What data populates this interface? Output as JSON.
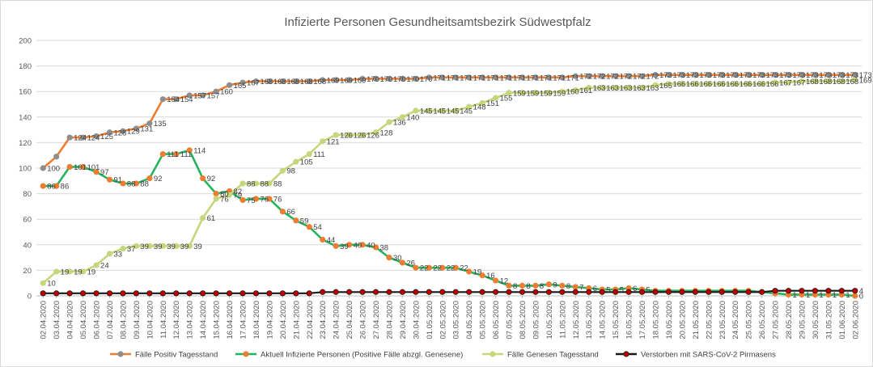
{
  "chart_data": {
    "type": "line",
    "title": "Infizierte Personen Gesundheitsamtsbezirk Südwestpfalz",
    "ylim": [
      0,
      200
    ],
    "yticks": [
      "0",
      "20",
      "40",
      "60",
      "80",
      "100",
      "120",
      "140",
      "160",
      "180",
      "200"
    ],
    "categories": [
      "02.04.2020",
      "03.04.2020",
      "04.04.2020",
      "05.04.2020",
      "06.04.2020",
      "07.04.2020",
      "08.04.2020",
      "09.04.2020",
      "10.04.2020",
      "11.04.2020",
      "12.04.2020",
      "13.04.2020",
      "14.04.2020",
      "15.04.2020",
      "16.04.2020",
      "17.04.2020",
      "18.04.2020",
      "19.04.2020",
      "20.04.2020",
      "21.04.2020",
      "22.04.2020",
      "23.04.2020",
      "24.04.2020",
      "25.04.2020",
      "26.04.2020",
      "27.04.2020",
      "28.04.2020",
      "29.04.2020",
      "30.04.2020",
      "01.05.2020",
      "02.05.2020",
      "03.05.2020",
      "04.05.2020",
      "05.05.2020",
      "06.05.2020",
      "07.05.2020",
      "08.05.2020",
      "09.05.2020",
      "10.05.2020",
      "11.05.2020",
      "12.05.2020",
      "13.05.2020",
      "14.05.2020",
      "15.05.2020",
      "16.05.2020",
      "17.05.2020",
      "18.05.2020",
      "19.05.2020",
      "20.05.2020",
      "21.05.2020",
      "22.05.2020",
      "23.05.2020",
      "24.05.2020",
      "25.05.2020",
      "26.05.2020",
      "27.05.2020",
      "28.05.2020",
      "29.05.2020",
      "30.05.2020",
      "31.05.2020",
      "01.06.2020",
      "02.06.2020"
    ],
    "series": [
      {
        "name": "Fälle Positiv Tagesstand",
        "line_color": "#ed7d31",
        "marker_color": "#8e8e8e",
        "values": [
          100,
          109,
          124,
          124,
          125,
          128,
          129,
          131,
          135,
          154,
          154,
          157,
          157,
          160,
          165,
          167,
          168,
          168,
          168,
          168,
          168,
          169,
          169,
          169,
          170,
          170,
          170,
          170,
          170,
          171,
          171,
          171,
          171,
          171,
          171,
          171,
          171,
          171,
          171,
          171,
          172,
          172,
          172,
          172,
          172,
          172,
          173,
          173,
          173,
          173,
          173,
          173,
          173,
          173,
          173,
          173,
          173,
          173,
          173,
          173,
          173,
          173
        ],
        "labels": [
          "100",
          "",
          "124",
          "124",
          "125",
          "128",
          "129",
          "131",
          "135",
          "154",
          "154",
          "157",
          "157",
          "160",
          "165",
          "167",
          "168",
          "168",
          "168",
          "168",
          "168",
          "169",
          "169",
          "169",
          "170",
          "170",
          "170",
          "170",
          "170",
          "171",
          "171",
          "171",
          "171",
          "171",
          "171",
          "171",
          "171",
          "171",
          "171",
          "171",
          "172",
          "172",
          "172",
          "172",
          "172",
          "172",
          "173",
          "173",
          "173",
          "173",
          "173",
          "173",
          "173",
          "173",
          "173",
          "173",
          "173",
          "173",
          "173",
          "173",
          "173",
          "173"
        ]
      },
      {
        "name": "Aktuell Infizierte Personen (Positive Fälle abzgl. Genesene)",
        "line_color": "#27b35e",
        "marker_color": "#ed7d31",
        "values": [
          86,
          86,
          101,
          101,
          97,
          91,
          88,
          88,
          92,
          111,
          111,
          114,
          92,
          80,
          82,
          75,
          76,
          76,
          66,
          59,
          54,
          44,
          39,
          40,
          40,
          38,
          30,
          26,
          22,
          22,
          22,
          22,
          19,
          16,
          12,
          8,
          8,
          8,
          9,
          8,
          7,
          6,
          5,
          5,
          6,
          5,
          4,
          4,
          4,
          4,
          4,
          4,
          4,
          4,
          3,
          2,
          1,
          1,
          1,
          1,
          1,
          0
        ],
        "labels": [
          "86",
          "86",
          "101",
          "101",
          "97",
          "91",
          "88",
          "88",
          "92",
          "111",
          "111",
          "114",
          "92",
          "80",
          "82",
          "75",
          "76",
          "76",
          "66",
          "59",
          "54",
          "44",
          "39",
          "40",
          "40",
          "38",
          "30",
          "26",
          "22",
          "22",
          "22",
          "22",
          "19",
          "16",
          "12",
          "8",
          "8",
          "8",
          "9",
          "8",
          "7",
          "6",
          "5",
          "5",
          "6",
          "5",
          "",
          "",
          "",
          "",
          "",
          "",
          "",
          "",
          "",
          "",
          "1",
          "1",
          "1",
          "1",
          "1",
          "0"
        ]
      },
      {
        "name": "Fälle Genesen Tagesstand",
        "line_color": "#c5d77c",
        "marker_color": "#c5d77c",
        "values": [
          10,
          19,
          19,
          19,
          24,
          33,
          37,
          39,
          39,
          39,
          39,
          39,
          61,
          76,
          79,
          88,
          88,
          88,
          98,
          105,
          111,
          121,
          126,
          126,
          126,
          128,
          136,
          140,
          145,
          145,
          145,
          145,
          148,
          151,
          155,
          159,
          159,
          159,
          159,
          160,
          161,
          163,
          163,
          163,
          163,
          163,
          165,
          166,
          166,
          166,
          166,
          166,
          166,
          166,
          166,
          167,
          167,
          168,
          168,
          168,
          168,
          169
        ],
        "labels": [
          "10",
          "19",
          "19",
          "19",
          "24",
          "33",
          "37",
          "39",
          "39",
          "39",
          "39",
          "39",
          "61",
          "76",
          "79",
          "88",
          "88",
          "88",
          "98",
          "105",
          "111",
          "121",
          "126",
          "126",
          "126",
          "128",
          "136",
          "140",
          "145",
          "145",
          "145",
          "145",
          "148",
          "151",
          "155",
          "159",
          "159",
          "159",
          "159",
          "160",
          "161",
          "163",
          "163",
          "163",
          "163",
          "163",
          "165",
          "166",
          "166",
          "166",
          "166",
          "166",
          "166",
          "166",
          "166",
          "167",
          "167",
          "168",
          "168",
          "168",
          "168",
          "169"
        ]
      },
      {
        "name": "Verstorben mit SARS-CoV-2 Pirmasens",
        "line_color": "#1a1a1a",
        "marker_color": "#c00000",
        "values": [
          2,
          2,
          2,
          2,
          2,
          2,
          2,
          2,
          2,
          2,
          2,
          2,
          2,
          2,
          2,
          2,
          2,
          2,
          2,
          2,
          2,
          3,
          3,
          3,
          3,
          3,
          3,
          3,
          3,
          3,
          3,
          3,
          3,
          3,
          3,
          3,
          3,
          3,
          3,
          3,
          3,
          3,
          3,
          3,
          3,
          3,
          3,
          3,
          3,
          3,
          3,
          3,
          3,
          3,
          3,
          4,
          4,
          4,
          4,
          4,
          4,
          4
        ],
        "labels": [
          "",
          "",
          "",
          "",
          "",
          "",
          "",
          "",
          "",
          "",
          "",
          "",
          "",
          "",
          "",
          "",
          "",
          "",
          "",
          "",
          "",
          "",
          "",
          "",
          "",
          "",
          "",
          "",
          "",
          "",
          "",
          "",
          "",
          "",
          "",
          "",
          "",
          "",
          "",
          "",
          "",
          "",
          "",
          "",
          "",
          "",
          "",
          "",
          "",
          "",
          "",
          "",
          "",
          "",
          "",
          "",
          "",
          "",
          "",
          "",
          "",
          "4"
        ]
      }
    ]
  }
}
